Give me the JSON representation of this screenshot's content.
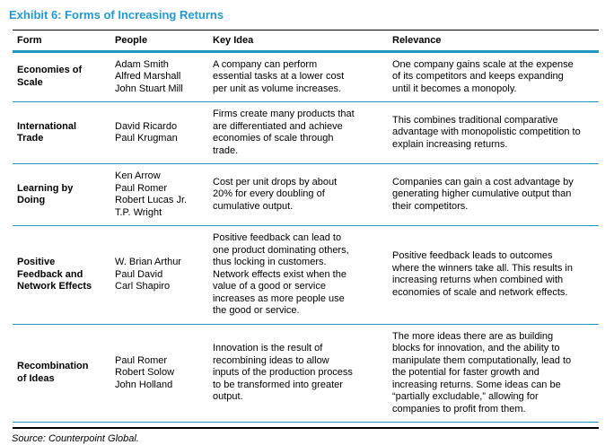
{
  "title": "Exhibit 6: Forms of Increasing Returns",
  "colors": {
    "accent_blue": "#1F9AD6",
    "line_teal": "#2196BE",
    "text_black": "#000000",
    "background": "#FFFFFF"
  },
  "table": {
    "headers": [
      "Form",
      "People",
      "Key Idea",
      "Relevance"
    ],
    "rows": [
      {
        "form": "Economies of Scale",
        "people": [
          "Adam Smith",
          "Alfred Marshall",
          "John Stuart Mill"
        ],
        "key_idea": "A company can perform essential tasks at a lower cost per unit as volume increases.",
        "relevance": "One company gains scale at the expense of its competitors and keeps expanding until it becomes a monopoly."
      },
      {
        "form": "International Trade",
        "people": [
          "David Ricardo",
          "Paul Krugman"
        ],
        "key_idea": "Firms create many products that are differentiated and achieve economies of scale through trade.",
        "relevance": "This combines traditional comparative advantage with monopolistic competition to explain increasing returns."
      },
      {
        "form": "Learning by Doing",
        "people": [
          "Ken Arrow",
          "Paul Romer",
          "Robert Lucas Jr.",
          "T.P. Wright"
        ],
        "key_idea": "Cost per unit drops by about 20% for every doubling of cumulative output.",
        "relevance": "Companies can gain a cost advantage by generating higher cumulative output than their competitors."
      },
      {
        "form": "Positive Feedback and Network Effects",
        "people": [
          "W. Brian Arthur",
          "Paul David",
          "Carl Shapiro"
        ],
        "key_idea": "Positive feedback can lead to one product dominating others, thus locking in customers. Network effects exist when the value of a good or service increases as more people use the good or service.",
        "relevance": "Positive feedback leads to outcomes where the winners take all. This results in increasing returns when combined with economies of scale and network effects."
      },
      {
        "form": "Recombination of Ideas",
        "people": [
          "Paul Romer",
          "Robert Solow",
          "John Holland"
        ],
        "key_idea": "Innovation is the result of recombining ideas to allow inputs of the production process to be transformed into greater output.",
        "relevance": "The more ideas there are as building blocks for innovation, and the ability to manipulate them computationally, lead to the potential for faster growth and increasing returns. Some ideas can be “partially excludable,” allowing for companies to profit from them."
      }
    ]
  },
  "source": "Source: Counterpoint Global."
}
